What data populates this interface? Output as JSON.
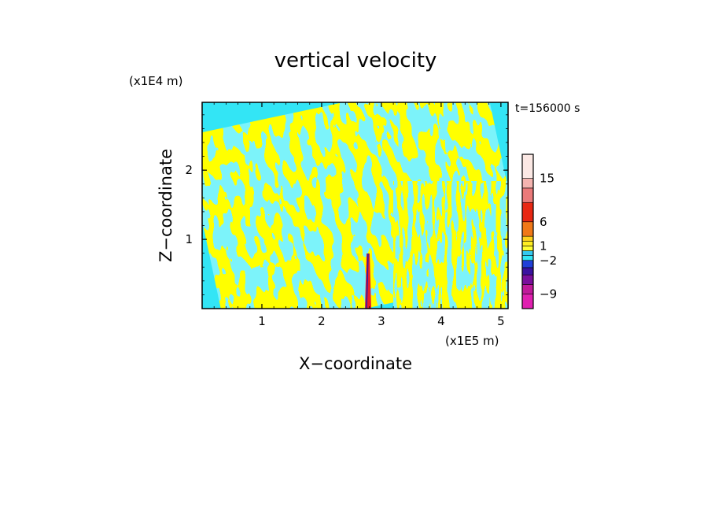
{
  "chart_data": {
    "type": "heatmap",
    "title": "vertical velocity",
    "xlabel": "X−coordinate",
    "ylabel": "Z−coordinate",
    "x_unit": "(x1E5 m)",
    "y_unit": "(x1E4 m)",
    "time_label": "t=156000 s",
    "x_ticks": [
      "1",
      "2",
      "3",
      "4",
      "5"
    ],
    "y_ticks": [
      "1",
      "2"
    ],
    "xlim": [
      0,
      5.12
    ],
    "ylim": [
      0,
      2.98
    ],
    "colors": {
      "positive": "#ffff33",
      "negative": "#33e5f5",
      "spike_positive": "#e8202a",
      "spike_negative": "#2a1aa8"
    },
    "colorbar": {
      "labels": [
        "15",
        "6",
        "1",
        "−2",
        "−9"
      ],
      "bands": [
        {
          "from": -12,
          "to": -9,
          "color": "#e020b0"
        },
        {
          "from": -9,
          "to": -7,
          "color": "#c01a9a"
        },
        {
          "from": -7,
          "to": -5,
          "color": "#7a0f9c"
        },
        {
          "from": -5,
          "to": -3.5,
          "color": "#3a12a0"
        },
        {
          "from": -3.5,
          "to": -2,
          "color": "#2040d8"
        },
        {
          "from": -2,
          "to": -1,
          "color": "#33e5f5"
        },
        {
          "from": -1,
          "to": 0,
          "color": "#33c8f0"
        },
        {
          "from": 0,
          "to": 1,
          "color": "#ffff33"
        },
        {
          "from": 1,
          "to": 2,
          "color": "#ffee22"
        },
        {
          "from": 2,
          "to": 3,
          "color": "#ffd21e"
        },
        {
          "from": 3,
          "to": 6,
          "color": "#f07818"
        },
        {
          "from": 6,
          "to": 10,
          "color": "#e82814"
        },
        {
          "from": 10,
          "to": 13,
          "color": "#ea7a7a"
        },
        {
          "from": 13,
          "to": 15,
          "color": "#f4b4b0"
        },
        {
          "from": 15,
          "to": 20,
          "color": "#fbe8e4"
        }
      ]
    }
  }
}
